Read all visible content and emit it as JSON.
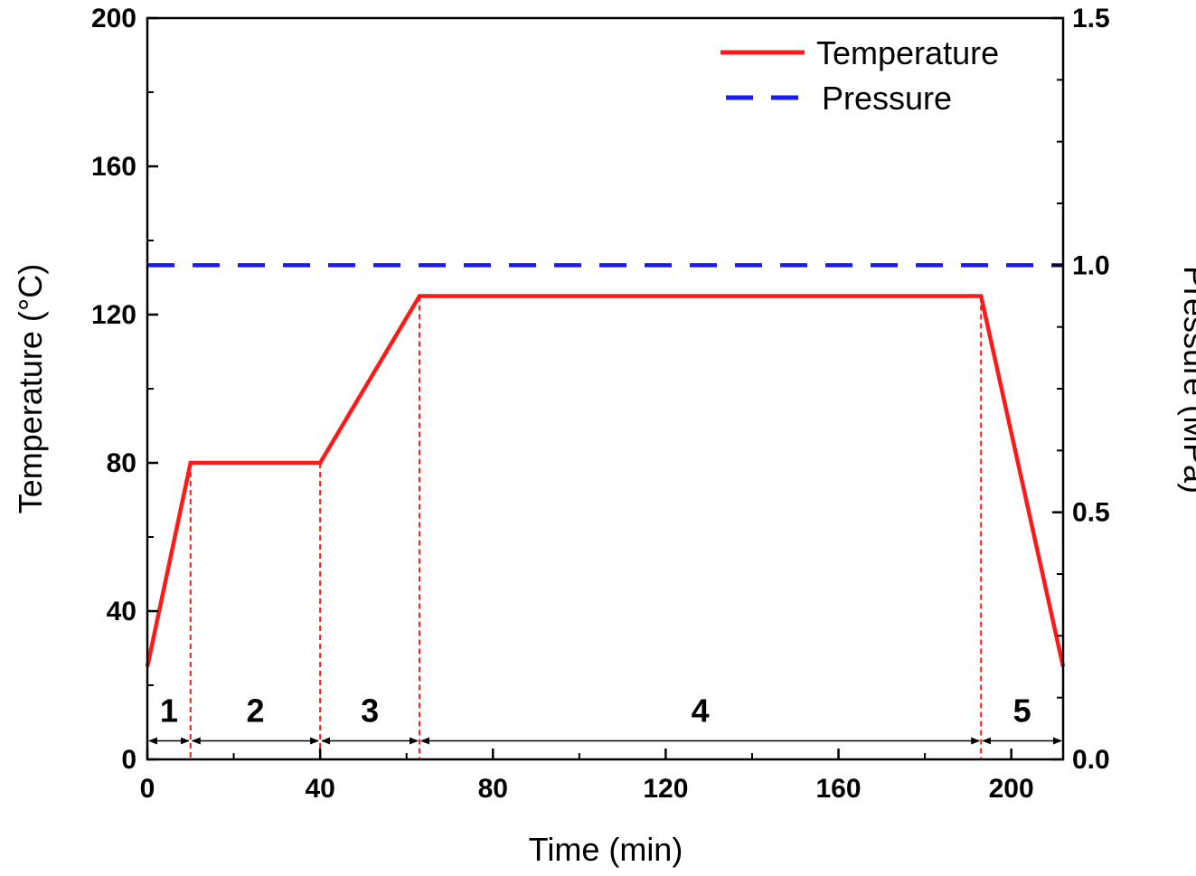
{
  "chart_data": {
    "type": "line",
    "title": "",
    "xlabel": "Time (min)",
    "ylabel": "Temperature (°C)",
    "y2label": "Pressure (MPa)",
    "xlim": [
      0,
      212
    ],
    "ylim": [
      0,
      200
    ],
    "y2lim": [
      0,
      1.5
    ],
    "x_ticks": [
      "0",
      "40",
      "80",
      "120",
      "160",
      "200"
    ],
    "x_tick_values": [
      0,
      40,
      80,
      120,
      160,
      200
    ],
    "y_ticks": [
      "0",
      "40",
      "80",
      "120",
      "160",
      "200"
    ],
    "y_tick_values": [
      0,
      40,
      80,
      120,
      160,
      200
    ],
    "y2_ticks": [
      "0.0",
      "0.5",
      "1.0",
      "1.5"
    ],
    "y2_tick_values": [
      0,
      0.5,
      1.0,
      1.5
    ],
    "legend_position": "top-right",
    "series": [
      {
        "name": "Temperature",
        "axis": "left",
        "color": "#ff1a1a",
        "style": "solid",
        "x": [
          0,
          10,
          40,
          63,
          193,
          212
        ],
        "y": [
          25,
          80,
          80,
          125,
          125,
          25
        ]
      },
      {
        "name": "Pressure",
        "axis": "right",
        "color": "#1a1aee",
        "style": "dashed",
        "x": [
          0,
          212
        ],
        "y": [
          1.0,
          1.0
        ]
      }
    ],
    "stage_boundaries": [
      10,
      40,
      63,
      193
    ],
    "stages": [
      {
        "label": "1",
        "start": 0,
        "end": 10
      },
      {
        "label": "2",
        "start": 10,
        "end": 40
      },
      {
        "label": "3",
        "start": 40,
        "end": 63
      },
      {
        "label": "4",
        "start": 63,
        "end": 193
      },
      {
        "label": "5",
        "start": 193,
        "end": 212
      }
    ],
    "stage_arrow_y": 5,
    "stage_label_y": 13
  }
}
